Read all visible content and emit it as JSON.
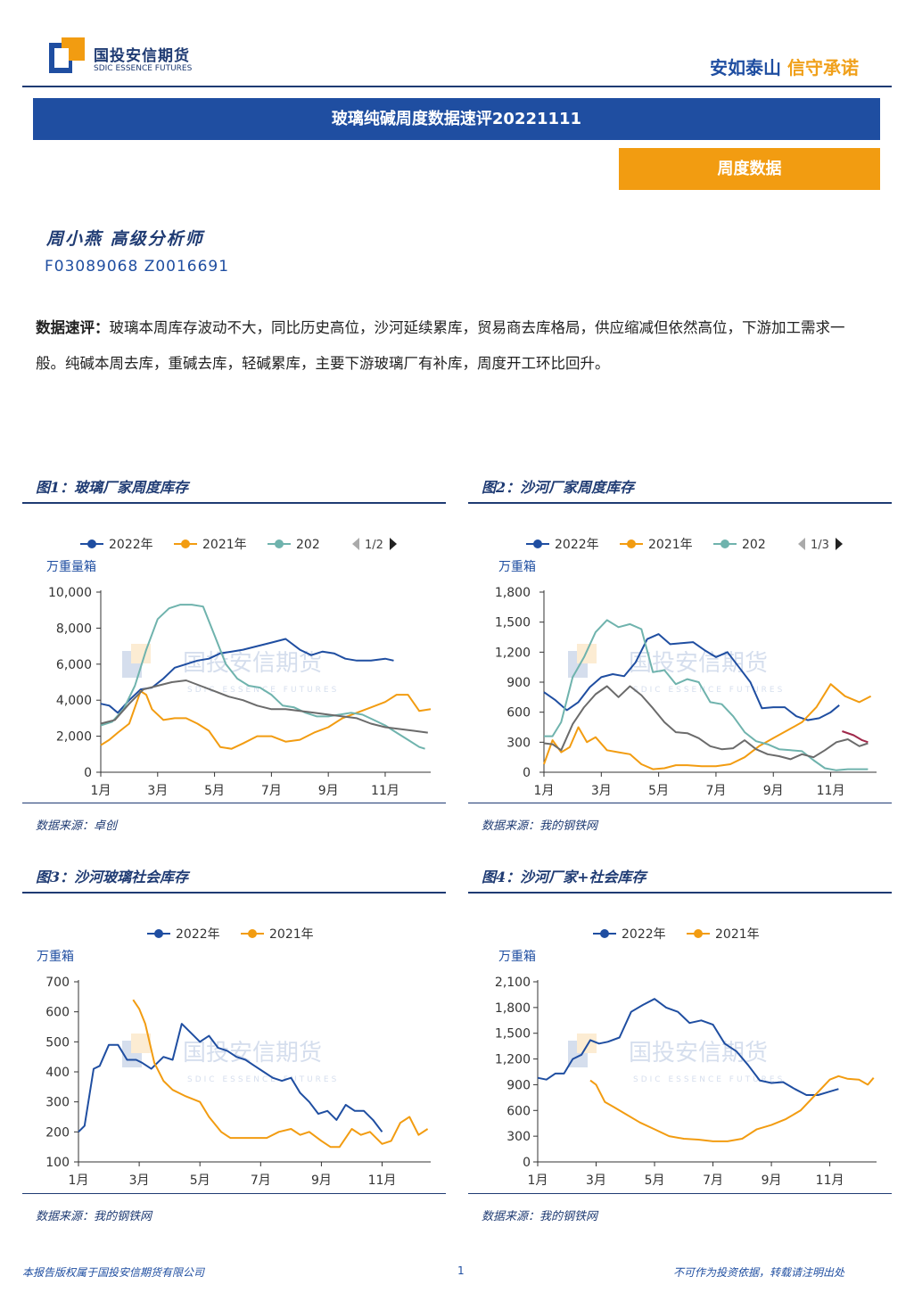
{
  "header": {
    "logo_cn": "国投安信期货",
    "logo_en": "SDIC ESSENCE FUTURES",
    "slogan_a": "安如泰山",
    "slogan_b": "信守承诺"
  },
  "title": "玻璃纯碱周度数据速评20221111",
  "section_badge": "周度数据",
  "author": "周小燕  高级分析师",
  "author_ids": "F03089068  Z0016691",
  "comment_label": "数据速评：",
  "comment_text": "玻璃本周库存波动不大，同比历史高位，沙河延续累库，贸易商去库格局，供应缩减但依然高位，下游加工需求一般。纯碱本周去库，重碱去库，轻碱累库，主要下游玻璃厂有补库，周度开工环比回升。",
  "watermark": "国投安信期货",
  "watermark_en": "SDIC ESSENCE FUTURES",
  "colors": {
    "s2022": "#1f4ea1",
    "s2021": "#f29c11",
    "s2020": "#6fb3ad",
    "sgray": "#6b6b6b",
    "sred": "#a0284a"
  },
  "chart_data": [
    {
      "type": "line",
      "fig_title": "图1：玻璃厂家周度库存",
      "unit_label": "万重量箱",
      "legend": [
        "2022年",
        "2021年",
        "202"
      ],
      "pager": "1/2",
      "x_ticks": [
        "1月",
        "3月",
        "5月",
        "7月",
        "9月",
        "11月"
      ],
      "ylim": [
        0,
        10000
      ],
      "y_ticks": [
        "0",
        "2,000",
        "4,000",
        "6,000",
        "8,000",
        "10,000"
      ],
      "source": "数据来源：卓创",
      "series": [
        {
          "name": "2022年",
          "color": "#1f4ea1",
          "x": [
            1,
            1.3,
            1.6,
            2,
            2.4,
            2.8,
            3.2,
            3.6,
            4,
            4.4,
            4.8,
            5.2,
            5.6,
            6,
            6.5,
            7,
            7.5,
            8,
            8.4,
            8.8,
            9.2,
            9.6,
            10,
            10.5,
            11,
            11.3
          ],
          "y": [
            3800,
            3700,
            3300,
            4000,
            4600,
            4700,
            5200,
            5800,
            6000,
            6200,
            6300,
            6600,
            6700,
            6800,
            7000,
            7200,
            7400,
            6800,
            6500,
            6700,
            6600,
            6300,
            6200,
            6200,
            6300,
            6200
          ]
        },
        {
          "name": "2021年",
          "color": "#f29c11",
          "x": [
            1,
            1.3,
            1.6,
            2,
            2.2,
            2.4,
            2.6,
            2.8,
            3.2,
            3.6,
            4,
            4.4,
            4.8,
            5.2,
            5.6,
            6,
            6.5,
            7,
            7.5,
            8,
            8.5,
            9,
            9.5,
            10,
            10.5,
            11,
            11.4,
            11.8,
            12.2,
            12.6
          ],
          "y": [
            1500,
            1800,
            2200,
            2700,
            3600,
            4500,
            4300,
            3500,
            2900,
            3000,
            3000,
            2700,
            2300,
            1400,
            1300,
            1600,
            2000,
            2000,
            1700,
            1800,
            2200,
            2500,
            3000,
            3300,
            3600,
            3900,
            4300,
            4300,
            3400,
            3500
          ]
        },
        {
          "name": "202",
          "color": "#6fb3ad",
          "x": [
            1,
            1.4,
            1.8,
            2.2,
            2.6,
            3,
            3.4,
            3.8,
            4.2,
            4.6,
            5,
            5.4,
            5.8,
            6.2,
            6.6,
            7,
            7.4,
            7.8,
            8.2,
            8.6,
            9,
            9.4,
            9.8,
            10.2,
            10.6,
            11,
            11.4,
            11.8,
            12.2,
            12.4
          ],
          "y": [
            2600,
            2800,
            3500,
            4800,
            6800,
            8500,
            9100,
            9300,
            9300,
            9200,
            7600,
            6000,
            5200,
            4800,
            4700,
            4300,
            3700,
            3600,
            3300,
            3100,
            3100,
            3200,
            3300,
            3200,
            2900,
            2600,
            2200,
            1800,
            1400,
            1300
          ]
        },
        {
          "name": "",
          "color": "#6b6b6b",
          "x": [
            1,
            1.5,
            2,
            2.5,
            3,
            3.5,
            4,
            4.5,
            5,
            5.5,
            6,
            6.5,
            7,
            7.5,
            8,
            8.5,
            9,
            9.5,
            10,
            10.5,
            11,
            11.5,
            12,
            12.5
          ],
          "y": [
            2700,
            2900,
            3800,
            4600,
            4800,
            5000,
            5100,
            4800,
            4500,
            4200,
            4000,
            3700,
            3500,
            3500,
            3400,
            3300,
            3200,
            3100,
            3000,
            2700,
            2500,
            2400,
            2300,
            2200
          ]
        }
      ]
    },
    {
      "type": "line",
      "fig_title": "图2：沙河厂家周度库存",
      "unit_label": "万重箱",
      "legend": [
        "2022年",
        "2021年",
        "202"
      ],
      "pager": "1/3",
      "x_ticks": [
        "1月",
        "3月",
        "5月",
        "7月",
        "9月",
        "11月"
      ],
      "ylim": [
        0,
        1800
      ],
      "y_ticks": [
        "0",
        "300",
        "600",
        "900",
        "1,200",
        "1,500",
        "1,800"
      ],
      "source": "数据来源：我的钢铁网",
      "series": [
        {
          "name": "2022年",
          "color": "#1f4ea1",
          "x": [
            1,
            1.4,
            1.8,
            2.2,
            2.6,
            3,
            3.4,
            3.8,
            4.2,
            4.6,
            5,
            5.4,
            5.8,
            6.2,
            6.6,
            7,
            7.4,
            7.8,
            8.2,
            8.6,
            9,
            9.4,
            9.8,
            10.2,
            10.6,
            11,
            11.3
          ],
          "y": [
            800,
            720,
            620,
            700,
            850,
            950,
            980,
            960,
            1100,
            1330,
            1380,
            1280,
            1290,
            1300,
            1220,
            1150,
            1200,
            1050,
            900,
            640,
            650,
            650,
            560,
            520,
            540,
            600,
            670
          ]
        },
        {
          "name": "2021年",
          "color": "#f29c11",
          "x": [
            1,
            1.3,
            1.6,
            1.9,
            2.2,
            2.5,
            2.8,
            3.2,
            3.6,
            4,
            4.4,
            4.8,
            5.2,
            5.6,
            6,
            6.5,
            7,
            7.5,
            8,
            8.5,
            9,
            9.5,
            10,
            10.5,
            11,
            11.5,
            12,
            12.4
          ],
          "y": [
            80,
            320,
            200,
            250,
            450,
            300,
            350,
            220,
            200,
            180,
            80,
            30,
            40,
            70,
            70,
            60,
            60,
            80,
            150,
            260,
            340,
            420,
            500,
            650,
            880,
            760,
            700,
            760
          ]
        },
        {
          "name": "202",
          "color": "#6fb3ad",
          "x": [
            1,
            1.3,
            1.6,
            2,
            2.4,
            2.8,
            3.2,
            3.6,
            4,
            4.4,
            4.8,
            5.2,
            5.6,
            6,
            6.4,
            6.8,
            7.2,
            7.6,
            8,
            8.4,
            8.8,
            9.2,
            9.6,
            10,
            10.4,
            10.8,
            11.2,
            11.6,
            12,
            12.3
          ],
          "y": [
            360,
            360,
            500,
            950,
            1150,
            1400,
            1520,
            1450,
            1480,
            1430,
            1000,
            1020,
            880,
            930,
            900,
            700,
            680,
            560,
            400,
            310,
            280,
            230,
            220,
            210,
            120,
            40,
            20,
            30,
            30,
            30
          ]
        },
        {
          "name": "",
          "color": "#6b6b6b",
          "x": [
            1,
            1.3,
            1.6,
            2,
            2.4,
            2.8,
            3.2,
            3.6,
            4,
            4.4,
            4.8,
            5.2,
            5.6,
            6,
            6.4,
            6.8,
            7.2,
            7.6,
            8,
            8.4,
            8.8,
            9.2,
            9.6,
            10,
            10.4,
            10.8,
            11.2,
            11.6,
            12,
            12.3
          ],
          "y": [
            290,
            280,
            220,
            480,
            650,
            780,
            860,
            750,
            860,
            770,
            640,
            500,
            400,
            390,
            340,
            260,
            230,
            240,
            320,
            230,
            180,
            160,
            130,
            180,
            150,
            220,
            300,
            330,
            260,
            290
          ]
        },
        {
          "name": "",
          "color": "#a0284a",
          "x": [
            11.4,
            11.8,
            12.1,
            12.3
          ],
          "y": [
            410,
            370,
            320,
            300
          ]
        }
      ]
    },
    {
      "type": "line",
      "fig_title": "图3：沙河玻璃社会库存",
      "unit_label": "万重箱",
      "legend": [
        "2022年",
        "2021年"
      ],
      "x_ticks": [
        "1月",
        "3月",
        "5月",
        "7月",
        "9月",
        "11月"
      ],
      "ylim": [
        100,
        700
      ],
      "y_ticks": [
        "100",
        "200",
        "300",
        "400",
        "500",
        "600",
        "700"
      ],
      "source": "数据来源：我的钢铁网",
      "series": [
        {
          "name": "2022年",
          "color": "#1f4ea1",
          "x": [
            1,
            1.2,
            1.5,
            1.7,
            2,
            2.3,
            2.6,
            2.9,
            3.1,
            3.4,
            3.8,
            4.1,
            4.4,
            4.7,
            5,
            5.3,
            5.6,
            5.9,
            6.2,
            6.5,
            6.8,
            7.1,
            7.4,
            7.7,
            8,
            8.3,
            8.6,
            8.9,
            9.2,
            9.5,
            9.8,
            10.1,
            10.4,
            10.7,
            11
          ],
          "y": [
            200,
            220,
            410,
            420,
            490,
            490,
            440,
            440,
            430,
            410,
            450,
            440,
            560,
            530,
            500,
            520,
            480,
            470,
            450,
            440,
            420,
            400,
            380,
            370,
            380,
            330,
            300,
            260,
            270,
            240,
            290,
            270,
            270,
            240,
            200
          ]
        },
        {
          "name": "2021年",
          "color": "#f29c11",
          "x": [
            2.8,
            3,
            3.2,
            3.5,
            3.8,
            4.1,
            4.5,
            5,
            5.3,
            5.7,
            6,
            6.4,
            6.8,
            7.2,
            7.6,
            8,
            8.3,
            8.6,
            9,
            9.3,
            9.6,
            10,
            10.3,
            10.6,
            11,
            11.3,
            11.6,
            11.9,
            12.2,
            12.5
          ],
          "y": [
            640,
            610,
            560,
            430,
            370,
            340,
            320,
            300,
            250,
            200,
            180,
            180,
            180,
            180,
            200,
            210,
            190,
            200,
            170,
            150,
            150,
            210,
            190,
            200,
            160,
            170,
            230,
            250,
            190,
            210
          ]
        }
      ]
    },
    {
      "type": "line",
      "fig_title": "图4：沙河厂家+社会库存",
      "unit_label": "万重箱",
      "legend": [
        "2022年",
        "2021年"
      ],
      "x_ticks": [
        "1月",
        "3月",
        "5月",
        "7月",
        "9月",
        "11月"
      ],
      "ylim": [
        0,
        2100
      ],
      "y_ticks": [
        "0",
        "300",
        "600",
        "900",
        "1,200",
        "1,500",
        "1,800",
        "2,100"
      ],
      "source": "数据来源：我的钢铁网",
      "series": [
        {
          "name": "2022年",
          "color": "#1f4ea1",
          "x": [
            1,
            1.3,
            1.6,
            1.9,
            2.2,
            2.5,
            2.8,
            3.1,
            3.4,
            3.8,
            4.2,
            4.6,
            5,
            5.4,
            5.8,
            6.2,
            6.6,
            7,
            7.4,
            7.8,
            8.2,
            8.6,
            9,
            9.4,
            9.8,
            10.2,
            10.6,
            11,
            11.3
          ],
          "y": [
            980,
            960,
            1030,
            1030,
            1200,
            1250,
            1420,
            1380,
            1400,
            1450,
            1750,
            1830,
            1900,
            1800,
            1750,
            1620,
            1650,
            1600,
            1380,
            1290,
            1130,
            950,
            920,
            930,
            850,
            780,
            780,
            820,
            850
          ]
        },
        {
          "name": "2021年",
          "color": "#f29c11",
          "x": [
            2.8,
            3,
            3.3,
            3.6,
            4,
            4.5,
            5,
            5.5,
            6,
            6.5,
            7,
            7.5,
            8,
            8.5,
            9,
            9.5,
            10,
            10.5,
            11,
            11.3,
            11.6,
            12,
            12.3,
            12.5
          ],
          "y": [
            950,
            900,
            700,
            640,
            560,
            460,
            380,
            300,
            270,
            260,
            240,
            240,
            270,
            380,
            430,
            500,
            600,
            780,
            960,
            1000,
            970,
            960,
            900,
            980
          ]
        }
      ]
    }
  ],
  "footer": {
    "left": "本报告版权属于国投安信期货有限公司",
    "page": "1",
    "right": "不可作为投资依据，转载请注明出处"
  }
}
